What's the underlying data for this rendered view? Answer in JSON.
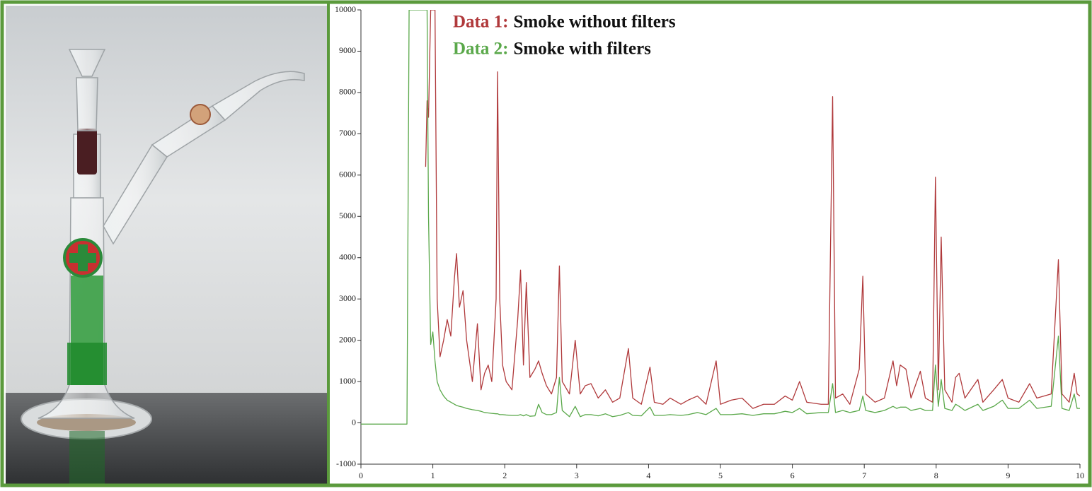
{
  "chart_data": {
    "type": "line",
    "x": [
      0,
      0.64,
      0.67,
      0.9,
      0.92,
      0.94,
      0.97,
      1.0,
      1.03,
      1.06,
      1.1,
      1.15,
      1.2,
      1.25,
      1.3,
      1.33,
      1.37,
      1.42,
      1.47,
      1.55,
      1.62,
      1.67,
      1.72,
      1.77,
      1.82,
      1.88,
      1.9,
      1.93,
      1.97,
      2.02,
      2.1,
      2.18,
      2.22,
      2.26,
      2.3,
      2.35,
      2.42,
      2.47,
      2.52,
      2.58,
      2.65,
      2.72,
      2.76,
      2.8,
      2.9,
      2.98,
      3.05,
      3.12,
      3.2,
      3.3,
      3.4,
      3.5,
      3.6,
      3.72,
      3.78,
      3.9,
      4.02,
      4.08,
      4.2,
      4.3,
      4.45,
      4.55,
      4.68,
      4.8,
      4.94,
      5.0,
      5.15,
      5.3,
      5.45,
      5.6,
      5.75,
      5.9,
      6.0,
      6.1,
      6.2,
      6.4,
      6.5,
      6.56,
      6.6,
      6.7,
      6.8,
      6.93,
      6.98,
      7.02,
      7.15,
      7.28,
      7.4,
      7.45,
      7.5,
      7.58,
      7.65,
      7.78,
      7.85,
      7.95,
      7.99,
      8.03,
      8.07,
      8.12,
      8.22,
      8.27,
      8.32,
      8.4,
      8.58,
      8.65,
      8.8,
      8.92,
      9.0,
      9.15,
      9.3,
      9.4,
      9.6,
      9.7,
      9.75,
      9.85,
      9.92,
      9.96,
      10.0
    ],
    "series": [
      {
        "name": "Data 1:",
        "description": "Smoke without filters",
        "color": "#b0393b",
        "values": [
          null,
          null,
          null,
          6200,
          7800,
          7400,
          10000,
          10000,
          10000,
          3000,
          1600,
          2000,
          2500,
          2100,
          3500,
          4100,
          2800,
          3200,
          2000,
          1000,
          2400,
          800,
          1200,
          1400,
          1000,
          3000,
          8500,
          3000,
          1400,
          1000,
          800,
          2500,
          3700,
          1400,
          3400,
          1100,
          1300,
          1500,
          1200,
          900,
          700,
          1100,
          3800,
          1000,
          700,
          2000,
          700,
          900,
          950,
          600,
          800,
          500,
          600,
          1800,
          600,
          450,
          1350,
          500,
          450,
          600,
          450,
          550,
          650,
          450,
          1500,
          450,
          550,
          600,
          350,
          450,
          450,
          650,
          550,
          1000,
          500,
          450,
          450,
          7900,
          600,
          700,
          450,
          1300,
          3550,
          700,
          500,
          600,
          1500,
          900,
          1400,
          1300,
          600,
          1250,
          600,
          500,
          5950,
          800,
          4500,
          800,
          500,
          1100,
          1200,
          600,
          1050,
          500,
          800,
          1050,
          600,
          500,
          950,
          600,
          700,
          3950,
          700,
          500,
          1200,
          700,
          650
        ]
      },
      {
        "name": "Data 2:",
        "description": "Smoke with filters",
        "color": "#5aa84a",
        "values": [
          -30,
          -30,
          10000,
          10000,
          10000,
          5000,
          1900,
          2200,
          1500,
          1000,
          800,
          650,
          550,
          500,
          450,
          420,
          400,
          380,
          350,
          320,
          300,
          280,
          250,
          240,
          230,
          220,
          220,
          200,
          200,
          190,
          180,
          180,
          200,
          170,
          200,
          160,
          170,
          450,
          250,
          200,
          200,
          250,
          1100,
          300,
          150,
          400,
          150,
          200,
          200,
          170,
          220,
          150,
          180,
          250,
          180,
          170,
          380,
          180,
          180,
          200,
          180,
          200,
          250,
          200,
          350,
          200,
          200,
          220,
          180,
          220,
          220,
          280,
          250,
          350,
          220,
          250,
          250,
          950,
          250,
          300,
          250,
          300,
          650,
          300,
          250,
          300,
          400,
          350,
          380,
          380,
          300,
          350,
          300,
          300,
          1400,
          400,
          1050,
          350,
          300,
          450,
          400,
          300,
          450,
          300,
          400,
          550,
          350,
          350,
          550,
          350,
          400,
          2100,
          350,
          300,
          700,
          350,
          350
        ]
      }
    ],
    "xlim": [
      0,
      10
    ],
    "xticks": [
      0,
      1,
      2,
      3,
      4,
      5,
      6,
      7,
      8,
      9,
      10
    ],
    "ylim": [
      -1000,
      10000
    ],
    "yticks": [
      -1000,
      0,
      1000,
      2000,
      3000,
      4000,
      5000,
      6000,
      7000,
      8000,
      9000,
      10000
    ]
  }
}
